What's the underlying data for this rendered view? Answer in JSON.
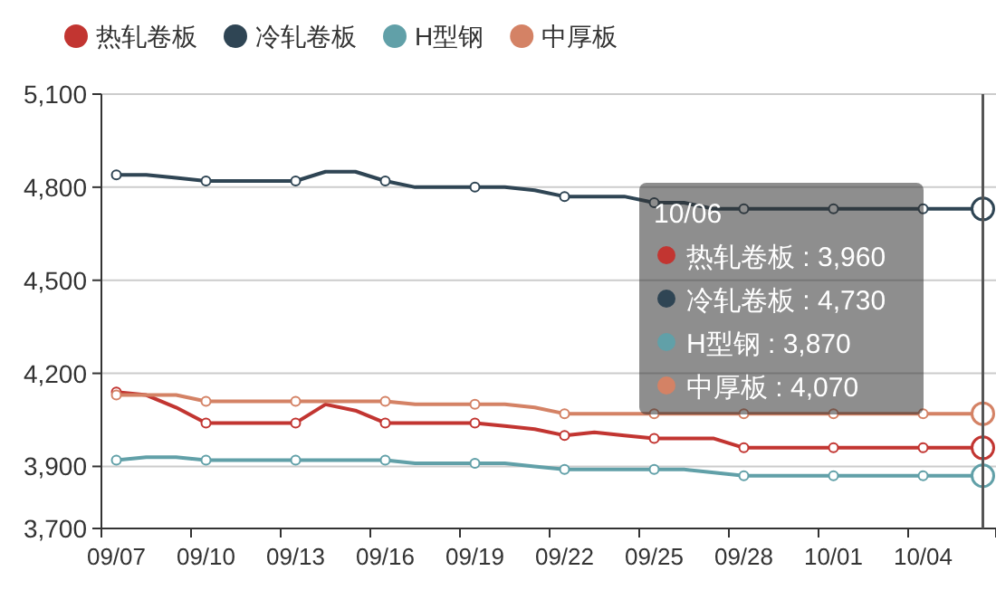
{
  "chart_data": {
    "type": "line",
    "categories": [
      "09/07",
      null,
      null,
      "09/10",
      null,
      null,
      "09/13",
      null,
      null,
      "09/16",
      null,
      null,
      "09/19",
      null,
      null,
      "09/22",
      null,
      null,
      "09/25",
      null,
      null,
      "09/28",
      null,
      null,
      "10/01",
      null,
      null,
      "10/04",
      null,
      null
    ],
    "series": [
      {
        "name": "热轧卷板",
        "color": "#c23531",
        "values": [
          4140,
          4130,
          4090,
          4040,
          4040,
          4040,
          4040,
          4100,
          4080,
          4040,
          4040,
          4040,
          4040,
          4030,
          4020,
          4000,
          4010,
          4000,
          3990,
          3990,
          3990,
          3960,
          3960,
          3960,
          3960,
          3960,
          3960,
          3960,
          3960,
          3960
        ]
      },
      {
        "name": "冷轧卷板",
        "color": "#2f4554",
        "values": [
          4840,
          4840,
          4830,
          4820,
          4820,
          4820,
          4820,
          4850,
          4850,
          4820,
          4800,
          4800,
          4800,
          4800,
          4790,
          4770,
          4770,
          4770,
          4750,
          4750,
          4730,
          4730,
          4730,
          4730,
          4730,
          4730,
          4730,
          4730,
          4730,
          4730
        ]
      },
      {
        "name": "H型钢",
        "color": "#61a0a8",
        "values": [
          3920,
          3930,
          3930,
          3920,
          3920,
          3920,
          3920,
          3920,
          3920,
          3920,
          3910,
          3910,
          3910,
          3910,
          3900,
          3890,
          3890,
          3890,
          3890,
          3890,
          3880,
          3870,
          3870,
          3870,
          3870,
          3870,
          3870,
          3870,
          3870,
          3870
        ]
      },
      {
        "name": "中厚板",
        "color": "#d48265",
        "values": [
          4130,
          4130,
          4130,
          4110,
          4110,
          4110,
          4110,
          4110,
          4110,
          4110,
          4100,
          4100,
          4100,
          4100,
          4090,
          4070,
          4070,
          4070,
          4070,
          4070,
          4070,
          4070,
          4070,
          4070,
          4070,
          4070,
          4070,
          4070,
          4070,
          4070
        ]
      }
    ],
    "ylim": [
      3700,
      5100
    ],
    "yticks": [
      {
        "value": 3700,
        "label": "3,700"
      },
      {
        "value": 3900,
        "label": "3,900"
      },
      {
        "value": 4200,
        "label": "4,200"
      },
      {
        "value": 4500,
        "label": "4,500"
      },
      {
        "value": 4800,
        "label": "4,800"
      },
      {
        "value": 5100,
        "label": "5,100"
      }
    ],
    "grid": "y",
    "legend": "top left",
    "line_style": "solid",
    "annotations": [
      "10/06",
      "热轧卷板 : 3,960",
      "冷轧卷板 : 4,730",
      "H型钢 : 3,870",
      "中厚板 : 4,070"
    ]
  }
}
